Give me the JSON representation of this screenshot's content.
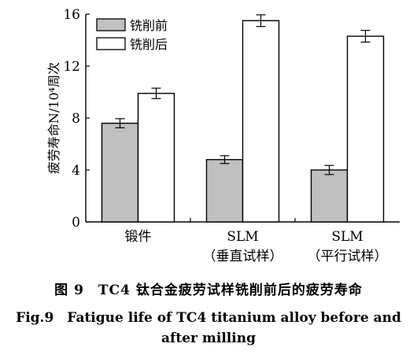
{
  "chart_data": {
    "type": "bar",
    "ylabel": "疲劳寿命N/10⁴周次",
    "ylim": [
      0,
      16
    ],
    "yticks": [
      0,
      4,
      8,
      12,
      16
    ],
    "categories": [
      {
        "line1": "锻件",
        "line2": ""
      },
      {
        "line1": "SLM",
        "line2": "（垂直试样）"
      },
      {
        "line1": "SLM",
        "line2": "（平行试样）"
      }
    ],
    "series": [
      {
        "name": "铣削前",
        "color": "#c0c0c0",
        "values": [
          7.6,
          4.8,
          4.0
        ],
        "errors": [
          0.35,
          0.3,
          0.35
        ]
      },
      {
        "name": "铣削后",
        "color": "#ffffff",
        "values": [
          9.9,
          15.5,
          14.3
        ],
        "errors": [
          0.4,
          0.45,
          0.45
        ]
      }
    ],
    "legend_position": "top-left",
    "grid": false
  },
  "caption": {
    "zh": "图 9　TC4 钛合金疲劳试样铣削前后的疲劳寿命",
    "en_line1": "Fig.9　Fatigue life of TC4 titanium alloy before and",
    "en_line2": "after milling"
  }
}
